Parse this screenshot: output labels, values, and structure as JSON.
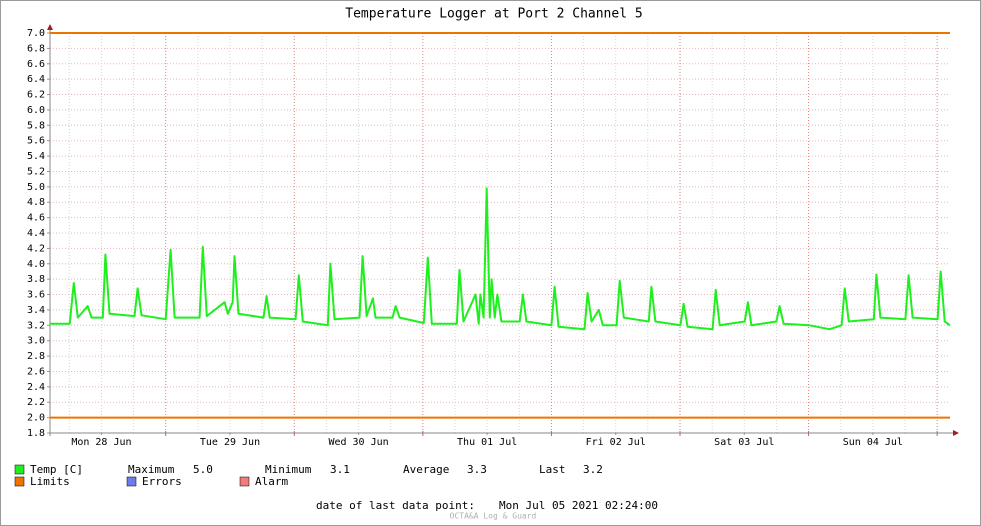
{
  "chart_data": {
    "type": "line",
    "title": "Temperature Logger at Port 2 Channel 5",
    "xlim": [
      "2021-06-28T02:24",
      "2021-07-05T02:24"
    ],
    "xticks": [
      {
        "value": "2021-06-28T12:00",
        "label": "Mon 28 Jun"
      },
      {
        "value": "2021-06-29T12:00",
        "label": "Tue 29 Jun"
      },
      {
        "value": "2021-06-30T12:00",
        "label": "Wed 30 Jun"
      },
      {
        "value": "2021-07-01T12:00",
        "label": "Thu 01 Jul"
      },
      {
        "value": "2021-07-02T12:00",
        "label": "Fri 02 Jul"
      },
      {
        "value": "2021-07-03T12:00",
        "label": "Sat 03 Jul"
      },
      {
        "value": "2021-07-04T12:00",
        "label": "Sun 04 Jul"
      }
    ],
    "ylim": [
      1.8,
      7.0
    ],
    "yticks": [
      1.8,
      {
        "value": 2.0,
        "label": "2.0"
      },
      2.2,
      2.4,
      2.6,
      2.8,
      {
        "value": 3.0,
        "label": "3.0"
      },
      3.2,
      3.4,
      3.6,
      3.8,
      {
        "value": 4.0,
        "label": "4.0"
      },
      4.2,
      4.4,
      4.6,
      4.8,
      {
        "value": 5.0,
        "label": "5.0"
      },
      5.2,
      5.4,
      5.6,
      5.8,
      {
        "value": 6.0,
        "label": "6.0"
      },
      6.2,
      6.4,
      6.6,
      6.8,
      {
        "value": 7.0,
        "label": "7.0"
      }
    ],
    "grid": true,
    "x": [
      "2021-06-28T02:24",
      "2021-06-28T06:05",
      "2021-06-28T06:50",
      "2021-06-28T07:35",
      "2021-06-28T09:25",
      "2021-06-28T10:10",
      "2021-06-28T12:15",
      "2021-06-28T12:45",
      "2021-06-28T13:30",
      "2021-06-28T18:10",
      "2021-06-28T18:45",
      "2021-06-28T19:30",
      "2021-06-29T00:00",
      "2021-06-29T00:55",
      "2021-06-29T01:40",
      "2021-06-29T06:20",
      "2021-06-29T06:55",
      "2021-06-29T07:40",
      "2021-06-29T11:00",
      "2021-06-29T11:35",
      "2021-06-29T12:30",
      "2021-06-29T12:50",
      "2021-06-29T13:35",
      "2021-06-29T18:15",
      "2021-06-29T18:50",
      "2021-06-29T19:25",
      "2021-06-30T00:15",
      "2021-06-30T00:50",
      "2021-06-30T01:35",
      "2021-06-30T06:15",
      "2021-06-30T06:45",
      "2021-06-30T07:30",
      "2021-06-30T12:10",
      "2021-06-30T12:45",
      "2021-06-30T13:30",
      "2021-06-30T14:40",
      "2021-06-30T15:10",
      "2021-06-30T18:20",
      "2021-06-30T18:55",
      "2021-06-30T19:40",
      "2021-07-01T00:10",
      "2021-07-01T00:55",
      "2021-07-01T01:40",
      "2021-07-01T06:20",
      "2021-07-01T06:50",
      "2021-07-01T07:35",
      "2021-07-01T09:50",
      "2021-07-01T10:25",
      "2021-07-01T10:45",
      "2021-07-01T11:20",
      "2021-07-01T11:55",
      "2021-07-01T12:30",
      "2021-07-01T12:50",
      "2021-07-01T13:25",
      "2021-07-01T13:55",
      "2021-07-01T14:40",
      "2021-07-01T18:05",
      "2021-07-01T18:40",
      "2021-07-01T19:20",
      "2021-07-02T00:00",
      "2021-07-02T00:35",
      "2021-07-02T01:20",
      "2021-07-02T06:10",
      "2021-07-02T06:45",
      "2021-07-02T07:30",
      "2021-07-02T08:50",
      "2021-07-02T09:35",
      "2021-07-02T12:10",
      "2021-07-02T12:45",
      "2021-07-02T13:30",
      "2021-07-02T18:10",
      "2021-07-02T18:40",
      "2021-07-02T19:25",
      "2021-07-03T00:05",
      "2021-07-03T00:40",
      "2021-07-03T01:25",
      "2021-07-03T06:05",
      "2021-07-03T06:40",
      "2021-07-03T07:25",
      "2021-07-03T12:05",
      "2021-07-03T12:40",
      "2021-07-03T13:20",
      "2021-07-03T18:00",
      "2021-07-03T18:35",
      "2021-07-03T19:20",
      "2021-07-04T00:10",
      "2021-07-04T03:55",
      "2021-07-04T06:10",
      "2021-07-04T06:45",
      "2021-07-04T07:30",
      "2021-07-04T12:10",
      "2021-07-04T12:40",
      "2021-07-04T13:25",
      "2021-07-04T18:05",
      "2021-07-04T18:40",
      "2021-07-04T19:25",
      "2021-07-05T00:05",
      "2021-07-05T00:40",
      "2021-07-05T01:25",
      "2021-07-05T02:24"
    ],
    "series": [
      {
        "name": "Temp [C]",
        "color": "#1ef01e",
        "values": [
          3.22,
          3.22,
          3.75,
          3.3,
          3.45,
          3.3,
          3.3,
          4.12,
          3.35,
          3.32,
          3.68,
          3.33,
          3.28,
          4.18,
          3.3,
          3.3,
          4.22,
          3.32,
          3.5,
          3.35,
          3.5,
          4.1,
          3.35,
          3.3,
          3.58,
          3.3,
          3.28,
          3.85,
          3.25,
          3.2,
          4.0,
          3.28,
          3.3,
          4.1,
          3.32,
          3.55,
          3.3,
          3.3,
          3.45,
          3.3,
          3.23,
          4.08,
          3.22,
          3.22,
          3.92,
          3.25,
          3.6,
          3.22,
          3.6,
          3.3,
          4.98,
          3.3,
          3.8,
          3.3,
          3.6,
          3.25,
          3.25,
          3.6,
          3.25,
          3.2,
          3.7,
          3.18,
          3.15,
          3.62,
          3.25,
          3.4,
          3.2,
          3.2,
          3.78,
          3.3,
          3.25,
          3.7,
          3.25,
          3.2,
          3.48,
          3.18,
          3.15,
          3.66,
          3.2,
          3.25,
          3.5,
          3.2,
          3.25,
          3.45,
          3.22,
          3.2,
          3.15,
          3.2,
          3.68,
          3.25,
          3.28,
          3.86,
          3.3,
          3.28,
          3.85,
          3.3,
          3.28,
          3.9,
          3.25,
          3.2
        ]
      }
    ],
    "limits": {
      "name": "Limits",
      "color": "#ee7400",
      "values": [
        7.0,
        2.0
      ]
    },
    "extra_legend": [
      {
        "name": "Errors",
        "color": "#6c7cf0"
      },
      {
        "name": "Alarm",
        "color": "#f07c7c"
      }
    ],
    "stats": [
      {
        "label": "Maximum",
        "value": "5.0"
      },
      {
        "label": "Minimum",
        "value": "3.1"
      },
      {
        "label": "Average",
        "value": "3.3"
      },
      {
        "label": "Last",
        "value": "3.2"
      }
    ],
    "footer": {
      "label": "date of last data point:",
      "value": "Mon Jul 05 2021 02:24:00"
    },
    "watermark": "OCTA&A Log & Guard"
  }
}
